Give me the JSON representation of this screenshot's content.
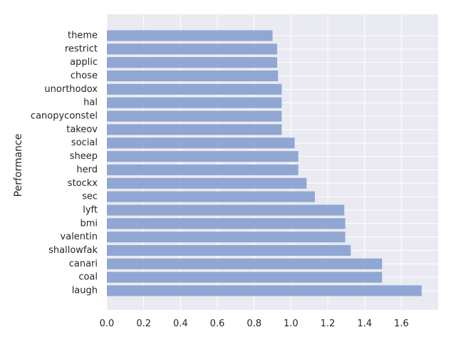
{
  "chart_data": {
    "type": "bar",
    "orientation": "horizontal",
    "categories": [
      "laugh",
      "coal",
      "canari",
      "shallowfak",
      "valentin",
      "bmi",
      "lyft",
      "sec",
      "stockx",
      "herd",
      "sheep",
      "social",
      "takeov",
      "canopyconstel",
      "hal",
      "unorthodox",
      "chose",
      "applic",
      "restrict",
      "theme"
    ],
    "values": [
      1.71,
      1.495,
      1.495,
      1.325,
      1.295,
      1.295,
      1.29,
      1.13,
      1.085,
      1.04,
      1.04,
      1.02,
      0.95,
      0.95,
      0.95,
      0.95,
      0.93,
      0.925,
      0.925,
      0.9
    ],
    "xlim": [
      0,
      1.8
    ],
    "xticks": [
      "0.0",
      "0.2",
      "0.4",
      "0.6",
      "0.8",
      "1.0",
      "1.2",
      "1.4",
      "1.6"
    ],
    "xtick_values": [
      0,
      0.2,
      0.4,
      0.6,
      0.8,
      1.0,
      1.2,
      1.4,
      1.6
    ],
    "title": "",
    "xlabel": "",
    "ylabel": "Performance",
    "grid": true,
    "legend": "none",
    "colors": {
      "bar": "#8fa7d2",
      "plot_background": "#eaeaf2",
      "grid": "#ffffff",
      "text": "#262626"
    }
  }
}
